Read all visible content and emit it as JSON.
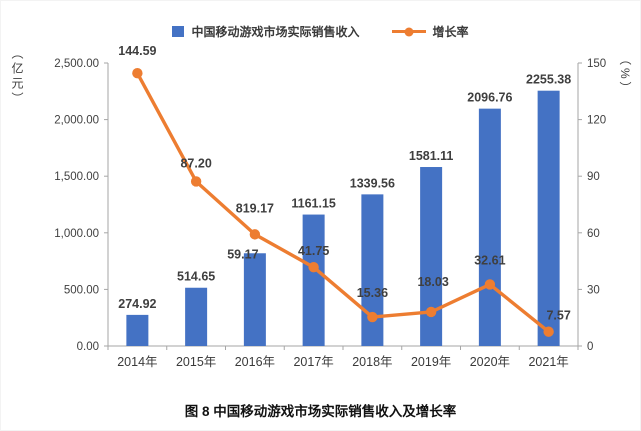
{
  "chart_data": {
    "type": "combo",
    "title": "",
    "caption": "图 8 中国移动游戏市场实际销售收入及增长率",
    "categories": [
      "2014年",
      "2015年",
      "2016年",
      "2017年",
      "2018年",
      "2019年",
      "2020年",
      "2021年"
    ],
    "series": [
      {
        "name": "中国移动游戏市场实际销售收入",
        "type": "bar",
        "axis": "left",
        "color": "#4472C4",
        "values": [
          274.92,
          514.65,
          819.17,
          1161.15,
          1339.56,
          1581.11,
          2096.76,
          2255.38
        ],
        "labels": [
          "274.92",
          "514.65",
          "819.17",
          "1161.15",
          "1339.56",
          "1581.11",
          "2096.76",
          "2255.38"
        ],
        "label_dy": [
          -7,
          -7,
          -41,
          -7,
          -7,
          -7,
          -7,
          -7
        ]
      },
      {
        "name": "增长率",
        "type": "line",
        "axis": "right",
        "color": "#ED7D31",
        "values": [
          144.59,
          87.2,
          59.17,
          41.75,
          15.36,
          18.03,
          32.61,
          7.57
        ],
        "labels": [
          "144.59",
          "87.20",
          "59.17",
          "41.75",
          "15.36",
          "18.03",
          "32.61",
          "7.57"
        ],
        "label_dx": [
          0,
          0,
          -12,
          0,
          0,
          2,
          0,
          10
        ],
        "label_dy": [
          -18,
          -14,
          24,
          -12,
          -20,
          -26,
          -20,
          -12
        ]
      }
    ],
    "left_axis": {
      "title": "（亿元）",
      "min": 0,
      "max": 2500,
      "step": 500,
      "tick_labels": [
        "0.00",
        "500.00",
        "1,000.00",
        "1,500.00",
        "2,000.00",
        "2,500.00"
      ]
    },
    "right_axis": {
      "title": "（%）",
      "min": 0,
      "max": 150,
      "step": 30,
      "tick_labels": [
        "0",
        "30",
        "60",
        "90",
        "120",
        "150"
      ]
    },
    "grid": false,
    "legend_position": "top"
  }
}
